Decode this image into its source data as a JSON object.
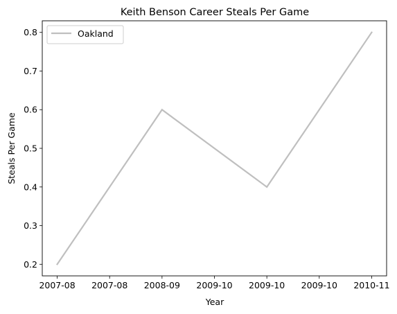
{
  "chart_data": {
    "type": "line",
    "title": "Keith Benson Career Steals Per Game",
    "xlabel": "Year",
    "ylabel": "Steals Per Game",
    "x_tick_labels": [
      "2007-08",
      "2007-08",
      "2008-09",
      "2009-10",
      "2009-10",
      "2009-10",
      "2010-11"
    ],
    "ylim": [
      0.17,
      0.83
    ],
    "y_ticks": [
      0.2,
      0.3,
      0.4,
      0.5,
      0.6,
      0.7,
      0.8
    ],
    "y_tick_labels": [
      "0.2",
      "0.3",
      "0.4",
      "0.5",
      "0.6",
      "0.7",
      "0.8"
    ],
    "grid": false,
    "legend_position": "top-left",
    "series": [
      {
        "name": "Oakland",
        "color": "#bfbfbf",
        "x": [
          0,
          1,
          2,
          3
        ],
        "x_labels": [
          "2007-08",
          "2008-09",
          "2009-10",
          "2010-11"
        ],
        "values": [
          0.2,
          0.6,
          0.4,
          0.8
        ]
      }
    ]
  }
}
